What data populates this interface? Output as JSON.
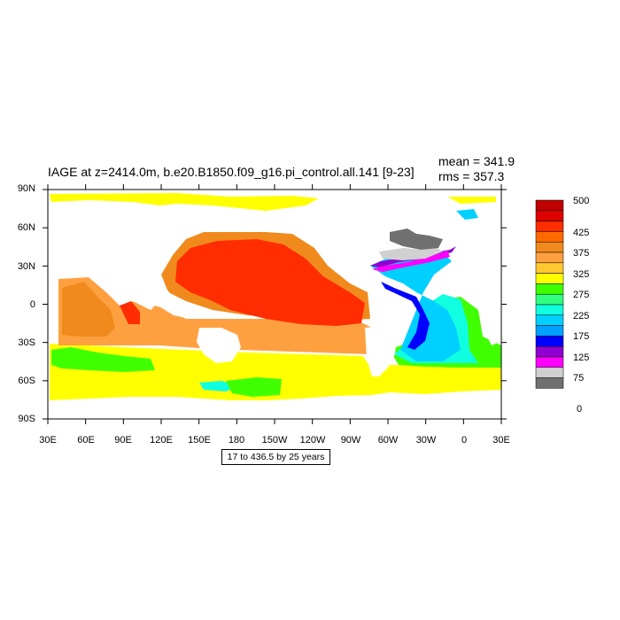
{
  "title": "IAGE at z=2414.0m, b.e20.B1850.f09_g16.pi_control.all.141 [9-23]",
  "stats": {
    "mean": "mean = 341.9",
    "rms": "rms = 357.3"
  },
  "lat_labels": [
    "90N",
    "60N",
    "30N",
    "0",
    "30S",
    "60S",
    "90S"
  ],
  "lon_labels": [
    "30E",
    "60E",
    "90E",
    "120E",
    "150E",
    "180",
    "150W",
    "120W",
    "90W",
    "60W",
    "30W",
    "0",
    "30E"
  ],
  "footnote": "17 to 436.5 by 25 years",
  "colorbar": {
    "colors": [
      "#c00000",
      "#e00000",
      "#ff2d00",
      "#ff6a00",
      "#f08a1c",
      "#ffa040",
      "#ffc830",
      "#ffff00",
      "#40ff00",
      "#30ff80",
      "#10ffe0",
      "#00d0ff",
      "#00a0ff",
      "#0000ff",
      "#9000d0",
      "#ff00ff",
      "#d0d0d0",
      "#707070"
    ],
    "labels": [
      "500",
      "425",
      "375",
      "325",
      "275",
      "225",
      "175",
      "125",
      "75",
      "0"
    ]
  },
  "map_colors": {
    "land": "#ffffff",
    "pacific_core": "#ff2d00",
    "pacific_mid": "#f08a1c",
    "pacific_outer": "#ffa040",
    "southern": "#ffff00",
    "arctic": "#ffff00",
    "atl_deep": "#0000ff",
    "atl_cyan": "#00d0ff",
    "atl_aqua": "#10ffe0",
    "atl_green": "#40ff00",
    "atl_purple": "#9000d0",
    "atl_magenta": "#ff00ff",
    "atl_lightgray": "#d0d0d0",
    "atl_gray": "#707070"
  }
}
